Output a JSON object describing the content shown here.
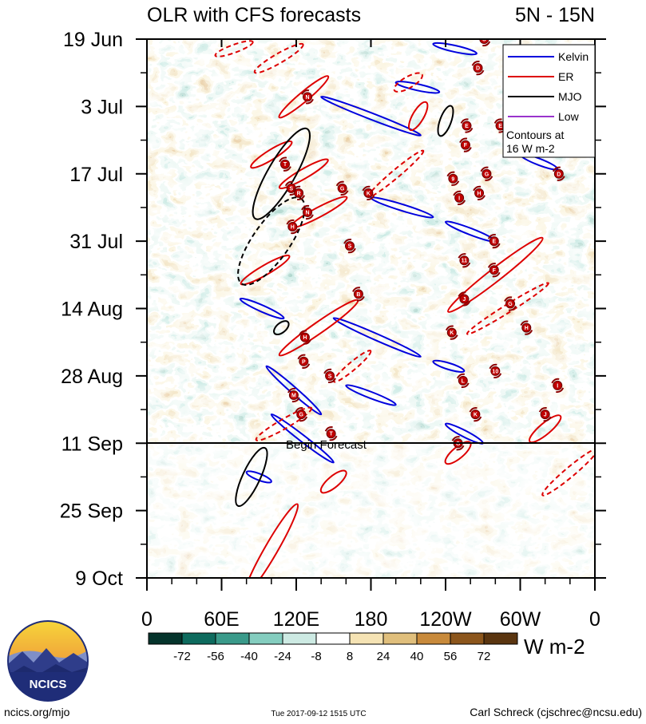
{
  "header": {
    "title": "OLR with CFS forecasts",
    "region": "5N - 15N"
  },
  "chart_data": {
    "type": "heatmap",
    "title": "OLR with CFS forecasts",
    "subtitle": "5N - 15N",
    "x_ticks": [
      {
        "lon": 0,
        "label": "0"
      },
      {
        "lon": 60,
        "label": "60E"
      },
      {
        "lon": 120,
        "label": "120E"
      },
      {
        "lon": 180,
        "label": "180"
      },
      {
        "lon": 240,
        "label": "120W"
      },
      {
        "lon": 300,
        "label": "60W"
      },
      {
        "lon": 360,
        "label": "0"
      }
    ],
    "y_ticks": [
      {
        "day": 0,
        "label": "19 Jun"
      },
      {
        "day": 14,
        "label": "3 Jul"
      },
      {
        "day": 28,
        "label": "17 Jul"
      },
      {
        "day": 42,
        "label": "31 Jul"
      },
      {
        "day": 56,
        "label": "14 Aug"
      },
      {
        "day": 70,
        "label": "28 Aug"
      },
      {
        "day": 84,
        "label": "11 Sep"
      },
      {
        "day": 98,
        "label": "25 Sep"
      },
      {
        "day": 112,
        "label": "9 Oct"
      }
    ],
    "xlim": [
      0,
      360
    ],
    "ylim": [
      0,
      112
    ],
    "forecast_start_day": 84,
    "forecast_label": "Begin Forecast",
    "legend": {
      "position": "top-right",
      "entries": [
        {
          "name": "Kelvin",
          "color": "#0000dd"
        },
        {
          "name": "ER",
          "color": "#dd0000"
        },
        {
          "name": "MJO",
          "color": "#000000"
        },
        {
          "name": "Low",
          "color": "#9933cc"
        }
      ],
      "note_line1": "Contours at",
      "note_line2": "16 W m-2"
    },
    "colorbar": {
      "levels": [
        -72,
        -56,
        -40,
        -24,
        -8,
        8,
        24,
        40,
        56,
        72
      ],
      "labels": [
        "-72",
        "-56",
        "-40",
        "-24",
        "-8",
        "8",
        "24",
        "40",
        "56",
        "72"
      ],
      "colors": [
        "#05342c",
        "#0e6b5e",
        "#3a9a8a",
        "#84cdbf",
        "#cdeae3",
        "#ffffff",
        "#f5e3b4",
        "#e0bf7c",
        "#c88a3b",
        "#8c561c",
        "#5a3510"
      ],
      "unit": "W m-2"
    },
    "kelvin_waves": [
      {
        "lon0": 96,
        "day0": 68,
        "lon1": 140,
        "day1": 78
      },
      {
        "lon0": 100,
        "day0": 78,
        "lon1": 150,
        "day1": 88
      },
      {
        "lon0": 150,
        "day0": 58,
        "lon1": 220,
        "day1": 66
      },
      {
        "lon0": 140,
        "day0": 12,
        "lon1": 220,
        "day1": 20
      },
      {
        "lon0": 180,
        "day0": 33,
        "lon1": 230,
        "day1": 37
      },
      {
        "lon0": 240,
        "day0": 38,
        "lon1": 280,
        "day1": 42
      },
      {
        "lon0": 200,
        "day0": 9,
        "lon1": 235,
        "day1": 11
      },
      {
        "lon0": 230,
        "day0": 1,
        "lon1": 265,
        "day1": 3
      },
      {
        "lon0": 75,
        "day0": 54,
        "lon1": 110,
        "day1": 58
      },
      {
        "lon0": 240,
        "day0": 80,
        "lon1": 270,
        "day1": 84
      },
      {
        "lon0": 230,
        "day0": 67,
        "lon1": 255,
        "day1": 69
      },
      {
        "lon0": 300,
        "day0": 24,
        "lon1": 330,
        "day1": 27
      },
      {
        "lon0": 80,
        "day0": 90,
        "lon1": 100,
        "day1": 92
      },
      {
        "lon0": 160,
        "day0": 72,
        "lon1": 200,
        "day1": 76
      }
    ],
    "er_waves": [
      {
        "lon": 100,
        "day": 24,
        "len": 60,
        "w": 12,
        "ang": -32,
        "dash": false
      },
      {
        "lon": 126,
        "day": 28,
        "len": 70,
        "w": 12,
        "ang": -30,
        "dash": false
      },
      {
        "lon": 138,
        "day": 36,
        "len": 80,
        "w": 12,
        "ang": -28,
        "dash": false
      },
      {
        "lon": 138,
        "day": 60,
        "len": 120,
        "w": 14,
        "ang": -35,
        "dash": false
      },
      {
        "lon": 95,
        "day": 48,
        "len": 70,
        "w": 12,
        "ang": -30,
        "dash": false
      },
      {
        "lon": 126,
        "day": 12,
        "len": 80,
        "w": 12,
        "ang": -40,
        "dash": false
      },
      {
        "lon": 106,
        "day": 4,
        "len": 70,
        "w": 12,
        "ang": -30,
        "dash": true
      },
      {
        "lon": 70,
        "day": 2,
        "len": 50,
        "w": 10,
        "ang": -20,
        "dash": true
      },
      {
        "lon": 200,
        "day": 28,
        "len": 90,
        "w": 10,
        "ang": -40,
        "dash": true
      },
      {
        "lon": 250,
        "day": 86,
        "len": 40,
        "w": 14,
        "ang": -40,
        "dash": false
      },
      {
        "lon": 150,
        "day": 92,
        "len": 40,
        "w": 14,
        "ang": -40,
        "dash": false
      },
      {
        "lon": 100,
        "day": 106,
        "len": 130,
        "w": 16,
        "ang": -60,
        "dash": false
      },
      {
        "lon": 280,
        "day": 49,
        "len": 150,
        "w": 16,
        "ang": -38,
        "dash": false
      },
      {
        "lon": 290,
        "day": 56,
        "len": 120,
        "w": 10,
        "ang": -32,
        "dash": true
      },
      {
        "lon": 340,
        "day": 90,
        "len": 90,
        "w": 12,
        "ang": -40,
        "dash": true
      },
      {
        "lon": 320,
        "day": 81,
        "len": 50,
        "w": 14,
        "ang": -40,
        "dash": false
      },
      {
        "lon": 165,
        "day": 68,
        "len": 60,
        "w": 10,
        "ang": -40,
        "dash": true
      },
      {
        "lon": 110,
        "day": 80,
        "len": 80,
        "w": 12,
        "ang": -30,
        "dash": true
      },
      {
        "lon": 210,
        "day": 9,
        "len": 40,
        "w": 14,
        "ang": -30,
        "dash": true
      },
      {
        "lon": 218,
        "day": 16,
        "len": 40,
        "w": 14,
        "ang": -60,
        "dash": false
      }
    ],
    "mjo": [
      {
        "lon": 108,
        "day": 28,
        "len": 130,
        "w": 34,
        "ang": -60,
        "dash": false
      },
      {
        "lon": 100,
        "day": 42,
        "len": 130,
        "w": 46,
        "ang": -55,
        "dash": true
      },
      {
        "lon": 84,
        "day": 91,
        "len": 80,
        "w": 22,
        "ang": -65,
        "dash": false
      },
      {
        "lon": 240,
        "day": 17,
        "len": 40,
        "w": 14,
        "ang": -70,
        "dash": false
      },
      {
        "lon": 108,
        "day": 60,
        "len": 22,
        "w": 12,
        "ang": -40,
        "dash": false
      }
    ],
    "storms": [
      {
        "lon": 129,
        "day": 12,
        "label": "N"
      },
      {
        "lon": 111,
        "day": 26,
        "label": "T"
      },
      {
        "lon": 116,
        "day": 31,
        "label": "S"
      },
      {
        "lon": 122,
        "day": 32,
        "label": "R"
      },
      {
        "lon": 129,
        "day": 36,
        "label": "N"
      },
      {
        "lon": 117,
        "day": 39,
        "label": "H"
      },
      {
        "lon": 157,
        "day": 31,
        "label": "G"
      },
      {
        "lon": 178,
        "day": 32,
        "label": "K"
      },
      {
        "lon": 163,
        "day": 43,
        "label": "S"
      },
      {
        "lon": 170,
        "day": 53,
        "label": "B"
      },
      {
        "lon": 127,
        "day": 62,
        "label": "H"
      },
      {
        "lon": 126,
        "day": 67,
        "label": "P"
      },
      {
        "lon": 147,
        "day": 70,
        "label": "S"
      },
      {
        "lon": 118,
        "day": 74,
        "label": "M"
      },
      {
        "lon": 124,
        "day": 78,
        "label": "G"
      },
      {
        "lon": 148,
        "day": 82,
        "label": "T"
      },
      {
        "lon": 250,
        "day": 84,
        "label": "G"
      },
      {
        "lon": 266,
        "day": 6,
        "label": "D"
      },
      {
        "lon": 257,
        "day": 18,
        "label": "E"
      },
      {
        "lon": 256,
        "day": 22,
        "label": "F"
      },
      {
        "lon": 246,
        "day": 29,
        "label": "9"
      },
      {
        "lon": 273,
        "day": 28,
        "label": "G"
      },
      {
        "lon": 331,
        "day": 28,
        "label": "D"
      },
      {
        "lon": 284,
        "day": 18,
        "label": "E"
      },
      {
        "lon": 251,
        "day": 33,
        "label": "I"
      },
      {
        "lon": 267,
        "day": 32,
        "label": "H"
      },
      {
        "lon": 279,
        "day": 42,
        "label": "E"
      },
      {
        "lon": 255,
        "day": 46,
        "label": "11"
      },
      {
        "lon": 279,
        "day": 48,
        "label": "F"
      },
      {
        "lon": 255,
        "day": 54,
        "label": "J"
      },
      {
        "lon": 292,
        "day": 55,
        "label": "G"
      },
      {
        "lon": 305,
        "day": 60,
        "label": "H"
      },
      {
        "lon": 245,
        "day": 61,
        "label": "K"
      },
      {
        "lon": 280,
        "day": 69,
        "label": "10"
      },
      {
        "lon": 254,
        "day": 71,
        "label": "L"
      },
      {
        "lon": 264,
        "day": 78,
        "label": "K"
      },
      {
        "lon": 330,
        "day": 72,
        "label": "I"
      },
      {
        "lon": 320,
        "day": 78,
        "label": "J"
      },
      {
        "lon": 271,
        "day": 0,
        "label": "C"
      }
    ]
  },
  "footer": {
    "logo_text": "NCICS",
    "site": "ncics.org/mjo",
    "timestamp": "Tue 2017-09-12 1515 UTC",
    "author": "Carl Schreck (cjschrec@ncsu.edu)"
  }
}
